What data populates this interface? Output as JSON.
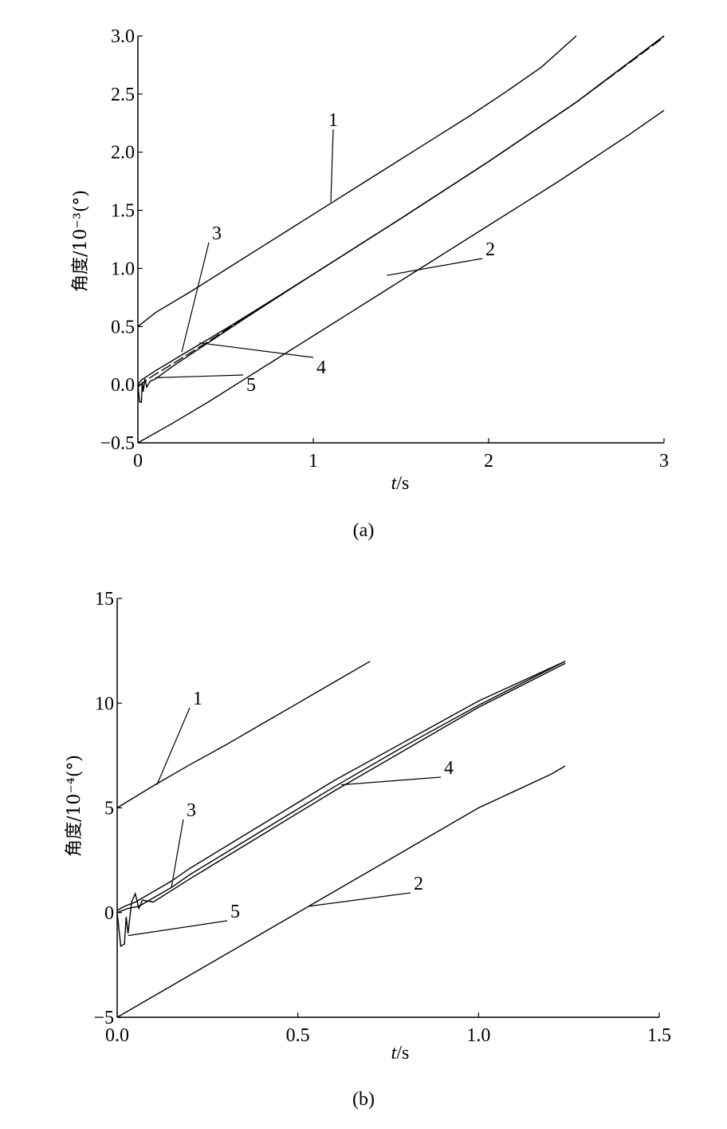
{
  "chart_data": [
    {
      "type": "line",
      "caption": "(a)",
      "xlabel_italic": "t",
      "xlabel_unit": "/s",
      "ylabel": "角度/10⁻³(°)",
      "xlim": [
        0,
        3
      ],
      "ylim": [
        -0.5,
        3.0
      ],
      "x_ticks": [
        "0",
        "1",
        "2",
        "3"
      ],
      "x_tick_values": [
        0,
        1,
        2,
        3
      ],
      "y_ticks": [
        "3.0",
        "2.5",
        "2.0",
        "1.5",
        "1.0",
        "0.5",
        "0.0",
        "−0.5"
      ],
      "y_tick_values": [
        3.0,
        2.5,
        2.0,
        1.5,
        1.0,
        0.5,
        0.0,
        -0.5
      ],
      "series": [
        {
          "name": "1",
          "x": [
            0,
            0.1,
            0.3,
            0.5,
            0.7,
            0.9,
            1.1,
            1.3,
            1.5,
            1.7,
            1.9,
            2.1,
            2.3,
            2.5
          ],
          "y": [
            0.5,
            0.62,
            0.8,
            0.99,
            1.18,
            1.37,
            1.56,
            1.75,
            1.94,
            2.13,
            2.32,
            2.52,
            2.73,
            3.0
          ]
        },
        {
          "name": "2",
          "x": [
            0,
            0.2,
            0.4,
            0.6,
            0.8,
            1.0,
            1.2,
            1.4,
            1.6,
            1.8,
            2.0,
            2.2,
            2.4,
            2.6,
            2.8,
            3.0
          ],
          "y": [
            -0.5,
            -0.33,
            -0.15,
            0.04,
            0.23,
            0.42,
            0.61,
            0.8,
            0.99,
            1.18,
            1.37,
            1.56,
            1.75,
            1.95,
            2.15,
            2.36
          ]
        },
        {
          "name": "3",
          "x": [
            0,
            0.02,
            0.05,
            0.1,
            0.2,
            0.3,
            0.5,
            0.8,
            1.0,
            1.5,
            2.0,
            2.5,
            3.0
          ],
          "y": [
            0.0,
            0.04,
            0.07,
            0.12,
            0.21,
            0.3,
            0.48,
            0.76,
            0.95,
            1.43,
            1.92,
            2.43,
            3.0
          ]
        },
        {
          "name": "4",
          "x": [
            0,
            0.03,
            0.06,
            0.1,
            0.2,
            0.4,
            0.6,
            0.8,
            1.0,
            1.5,
            2.0,
            2.5,
            3.0
          ],
          "y": [
            -0.02,
            0.02,
            0.05,
            0.09,
            0.18,
            0.37,
            0.57,
            0.76,
            0.95,
            1.43,
            1.92,
            2.43,
            2.99
          ]
        },
        {
          "name": "5",
          "x": [
            0,
            0.01,
            0.02,
            0.025,
            0.03,
            0.04,
            0.05,
            0.07,
            0.1,
            0.2,
            0.4,
            0.6,
            1.0,
            1.5,
            2.0,
            2.5,
            3.0
          ],
          "y": [
            0.0,
            -0.15,
            -0.15,
            0.02,
            -0.06,
            0.05,
            -0.02,
            0.03,
            0.05,
            0.16,
            0.36,
            0.56,
            0.95,
            1.43,
            1.92,
            2.43,
            3.0
          ]
        }
      ],
      "curve_labels": [
        {
          "text": "1",
          "x": 1.1,
          "y": 1.57
        },
        {
          "text": "2",
          "x": 1.42,
          "y": 0.94
        },
        {
          "text": "3",
          "x": 0.25,
          "y": 0.28
        },
        {
          "text": "4",
          "x": 0.35,
          "y": 0.36
        },
        {
          "text": "5",
          "x": 0.1,
          "y": 0.06
        }
      ]
    },
    {
      "type": "line",
      "caption": "(b)",
      "xlabel_italic": "t",
      "xlabel_unit": "/s",
      "ylabel": "角度/10⁻⁴(°)",
      "xlim": [
        0,
        1.5
      ],
      "ylim": [
        -5,
        15
      ],
      "x_ticks": [
        "0.0",
        "0.5",
        "1.0",
        "1.5"
      ],
      "x_tick_values": [
        0,
        0.5,
        1.0,
        1.5
      ],
      "y_ticks": [
        "15",
        "10",
        "5",
        "0",
        "−5"
      ],
      "y_tick_values": [
        15,
        10,
        5,
        0,
        -5
      ],
      "series": [
        {
          "name": "1",
          "x": [
            0,
            0.1,
            0.2,
            0.3,
            0.4,
            0.5,
            0.6,
            0.7
          ],
          "y": [
            5.0,
            6.05,
            7.05,
            8.0,
            9.0,
            10.0,
            11.0,
            12.0
          ]
        },
        {
          "name": "2",
          "x": [
            0,
            0.2,
            0.4,
            0.6,
            0.8,
            1.0,
            1.2,
            1.24
          ],
          "y": [
            -5.0,
            -3.0,
            -1.0,
            1.0,
            3.0,
            5.0,
            6.6,
            7.0
          ]
        },
        {
          "name": "3",
          "x": [
            0,
            0.02,
            0.05,
            0.1,
            0.15,
            0.2,
            0.4,
            0.6,
            0.8,
            1.0,
            1.24
          ],
          "y": [
            0.1,
            0.3,
            0.5,
            1.0,
            1.5,
            2.1,
            4.2,
            6.3,
            8.2,
            10.1,
            12.0
          ]
        },
        {
          "name": "4",
          "x": [
            0,
            0.03,
            0.06,
            0.1,
            0.15,
            0.2,
            0.4,
            0.6,
            0.8,
            1.0,
            1.24
          ],
          "y": [
            0.0,
            0.2,
            0.3,
            0.7,
            1.2,
            1.8,
            3.9,
            6.0,
            8.0,
            9.9,
            12.0
          ]
        },
        {
          "name": "5",
          "x": [
            0,
            0.01,
            0.02,
            0.025,
            0.03,
            0.04,
            0.05,
            0.06,
            0.07,
            0.1,
            0.2,
            0.4,
            0.6,
            0.8,
            1.0,
            1.24
          ],
          "y": [
            0.0,
            -1.6,
            -1.5,
            -0.2,
            -1.0,
            0.5,
            0.9,
            0.2,
            0.6,
            0.5,
            1.6,
            3.7,
            5.8,
            7.8,
            9.8,
            11.9
          ]
        }
      ],
      "curve_labels": [
        {
          "text": "1",
          "x": 0.11,
          "y": 6.1
        },
        {
          "text": "2",
          "x": 0.53,
          "y": 0.3
        },
        {
          "text": "3",
          "x": 0.15,
          "y": 1.2
        },
        {
          "text": "4",
          "x": 0.62,
          "y": 6.1
        },
        {
          "text": "5",
          "x": 0.03,
          "y": -1.1
        }
      ]
    }
  ]
}
